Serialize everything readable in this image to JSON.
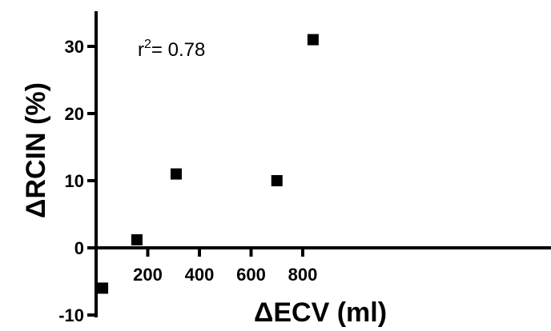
{
  "chart_data": {
    "type": "scatter",
    "xlabel": "ΔECV (ml)",
    "ylabel": "ΔRCIN (%)",
    "xlim": [
      0,
      880
    ],
    "ylim": [
      -10,
      32
    ],
    "x_ticks": [
      {
        "value": 200,
        "label": "200"
      },
      {
        "value": 400,
        "label": "400"
      },
      {
        "value": 600,
        "label": "600"
      },
      {
        "value": 800,
        "label": "800"
      }
    ],
    "y_ticks": [
      {
        "value": -10,
        "label": "-10"
      },
      {
        "value": 0,
        "label": "0"
      },
      {
        "value": 10,
        "label": "10"
      },
      {
        "value": 20,
        "label": "20"
      },
      {
        "value": 30,
        "label": "30"
      }
    ],
    "points": [
      {
        "x": 25,
        "y": -6
      },
      {
        "x": 158,
        "y": 1.2
      },
      {
        "x": 310,
        "y": 11
      },
      {
        "x": 700,
        "y": 10
      },
      {
        "x": 840,
        "y": 31
      }
    ],
    "marker": "square",
    "marker_color": "#000000",
    "annotation": {
      "prefix": "r",
      "superscript": "2",
      "suffix": "= 0.78"
    },
    "grid": false,
    "legend": "none"
  }
}
